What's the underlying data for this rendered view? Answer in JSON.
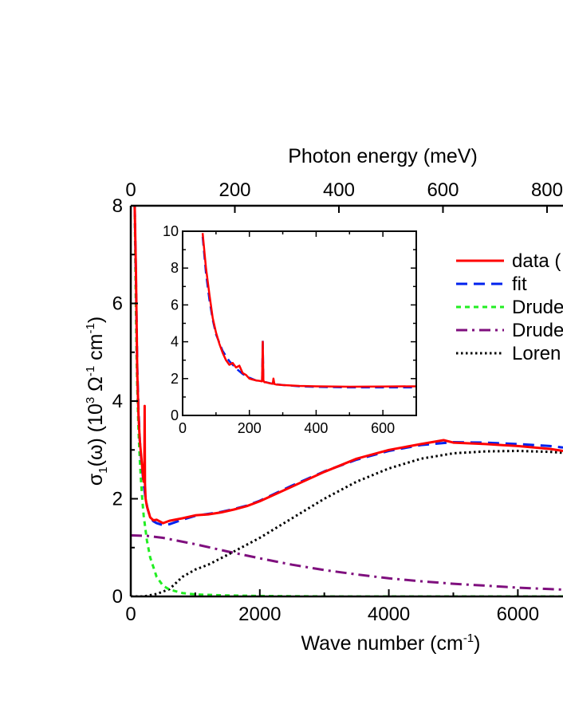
{
  "chart_data": [
    {
      "type": "line",
      "xlabel": "Wave number (cm",
      "xlabel_sup": "-1",
      "xlabel_end": ")",
      "ylabel": "σ",
      "ylabel_sub": "1",
      "ylabel_mid": "(ω) (10",
      "ylabel_sup1": "3",
      "ylabel_mid2": " Ω",
      "ylabel_sup2": "-1",
      "ylabel_mid3": " cm",
      "ylabel_sup3": "-1",
      "ylabel_end": ")",
      "top_xlabel": "Photon energy (meV)",
      "xlim": [
        0,
        6700
      ],
      "ylim": [
        0,
        8
      ],
      "xticks": [
        "0",
        "2000",
        "4000",
        "6000"
      ],
      "yticks": [
        "0",
        "2",
        "4",
        "6",
        "8"
      ],
      "top_ticks": [
        "0",
        "200",
        "400",
        "600",
        "800"
      ],
      "legend": {
        "placement": "right",
        "entries": [
          "data (",
          "fit",
          "Drude",
          "Drude",
          "Loren"
        ]
      },
      "series": [
        {
          "name": "data (",
          "color": "#ff0000",
          "style": "solid",
          "x": [
            60,
            80,
            100,
            120,
            140,
            160,
            180,
            200,
            210,
            215,
            220,
            225,
            230,
            250,
            300,
            350,
            400,
            500,
            600,
            800,
            1000,
            1200,
            1400,
            1600,
            1800,
            2000,
            2500,
            3000,
            3500,
            4000,
            4500,
            4850,
            5000,
            5500,
            6000,
            6500,
            6700
          ],
          "y": [
            8.0,
            6.6,
            4.6,
            3.7,
            3.2,
            2.9,
            2.6,
            2.35,
            2.6,
            3.9,
            2.3,
            2.15,
            2.0,
            1.85,
            1.62,
            1.56,
            1.57,
            1.5,
            1.55,
            1.6,
            1.66,
            1.68,
            1.72,
            1.78,
            1.85,
            1.95,
            2.25,
            2.55,
            2.82,
            3.0,
            3.12,
            3.2,
            3.15,
            3.12,
            3.08,
            3.02,
            2.98
          ]
        },
        {
          "name": "fit",
          "color": "#0022ee",
          "style": "dashed",
          "x": [
            60,
            80,
            100,
            120,
            140,
            160,
            180,
            200,
            230,
            260,
            300,
            350,
            400,
            500,
            600,
            800,
            1000,
            1200,
            1400,
            1600,
            1800,
            2000,
            2500,
            3000,
            3500,
            4000,
            4500,
            5000,
            5500,
            6000,
            6500,
            6700
          ],
          "y": [
            8.0,
            6.5,
            4.7,
            3.8,
            3.2,
            2.85,
            2.55,
            2.3,
            2.0,
            1.8,
            1.62,
            1.54,
            1.5,
            1.46,
            1.48,
            1.57,
            1.65,
            1.69,
            1.73,
            1.79,
            1.86,
            1.96,
            2.27,
            2.56,
            2.8,
            2.98,
            3.1,
            3.16,
            3.15,
            3.12,
            3.08,
            3.05
          ]
        },
        {
          "name": "Drude",
          "color": "#22ee22",
          "style": "short-dash",
          "x": [
            60,
            70,
            80,
            90,
            100,
            120,
            140,
            160,
            180,
            200,
            250,
            300,
            400,
            500,
            600,
            800,
            1000,
            1500,
            2000,
            3000,
            4000,
            5000,
            6000,
            6700
          ],
          "y": [
            8.0,
            6.9,
            5.8,
            4.9,
            4.3,
            3.4,
            2.8,
            2.35,
            1.95,
            1.65,
            1.15,
            0.8,
            0.4,
            0.22,
            0.14,
            0.07,
            0.04,
            0.02,
            0.01,
            0.0,
            0.0,
            0.0,
            0.0,
            0.0
          ]
        },
        {
          "name": "Drude",
          "color": "#7f0f7e",
          "style": "dash-dot",
          "x": [
            0,
            250,
            500,
            1000,
            1500,
            2000,
            2500,
            3000,
            3500,
            4000,
            4500,
            5000,
            5500,
            6000,
            6500,
            6700
          ],
          "y": [
            1.25,
            1.24,
            1.2,
            1.07,
            0.92,
            0.78,
            0.65,
            0.54,
            0.45,
            0.37,
            0.31,
            0.26,
            0.22,
            0.18,
            0.15,
            0.14
          ]
        },
        {
          "name": "Loren",
          "color": "#000000",
          "style": "dotted",
          "x": [
            0,
            200,
            400,
            600,
            800,
            1000,
            1200,
            1500,
            2000,
            2500,
            3000,
            3500,
            4000,
            4500,
            5000,
            5500,
            6000,
            6500,
            6700
          ],
          "y": [
            0.0,
            0.0,
            0.05,
            0.15,
            0.4,
            0.55,
            0.65,
            0.85,
            1.2,
            1.6,
            2.0,
            2.35,
            2.62,
            2.82,
            2.93,
            2.97,
            2.98,
            2.96,
            2.94
          ]
        }
      ]
    },
    {
      "type": "line",
      "role": "inset",
      "xlim": [
        0,
        700
      ],
      "ylim": [
        0,
        10
      ],
      "xticks": [
        "0",
        "200",
        "400",
        "600"
      ],
      "yticks": [
        "0",
        "2",
        "4",
        "6",
        "8",
        "10"
      ],
      "series": [
        {
          "color": "#ff0000",
          "style": "solid",
          "x": [
            60,
            70,
            80,
            90,
            100,
            110,
            120,
            130,
            140,
            150,
            160,
            170,
            180,
            190,
            200,
            210,
            220,
            230,
            238,
            240,
            242,
            245,
            250,
            260,
            270,
            272,
            275,
            280,
            300,
            350,
            400,
            500,
            600,
            700
          ],
          "y": [
            9.9,
            8.0,
            6.6,
            5.3,
            4.5,
            3.9,
            3.4,
            3.0,
            2.75,
            2.85,
            2.6,
            2.7,
            2.3,
            2.2,
            2.0,
            1.95,
            1.9,
            1.88,
            1.85,
            4.0,
            1.9,
            1.8,
            1.8,
            1.75,
            1.72,
            2.0,
            1.7,
            1.68,
            1.65,
            1.6,
            1.58,
            1.56,
            1.57,
            1.58
          ]
        },
        {
          "color": "#0022ee",
          "style": "dashed",
          "x": [
            60,
            70,
            80,
            90,
            100,
            120,
            140,
            160,
            180,
            200,
            220,
            238,
            240,
            242,
            250,
            270,
            272,
            275,
            300,
            350,
            400,
            500,
            600,
            700
          ],
          "y": [
            9.7,
            7.7,
            6.3,
            5.2,
            4.4,
            3.5,
            2.95,
            2.55,
            2.25,
            2.05,
            1.9,
            1.85,
            4.1,
            1.88,
            1.8,
            1.72,
            1.8,
            1.7,
            1.65,
            1.58,
            1.55,
            1.52,
            1.52,
            1.52
          ]
        }
      ]
    }
  ]
}
